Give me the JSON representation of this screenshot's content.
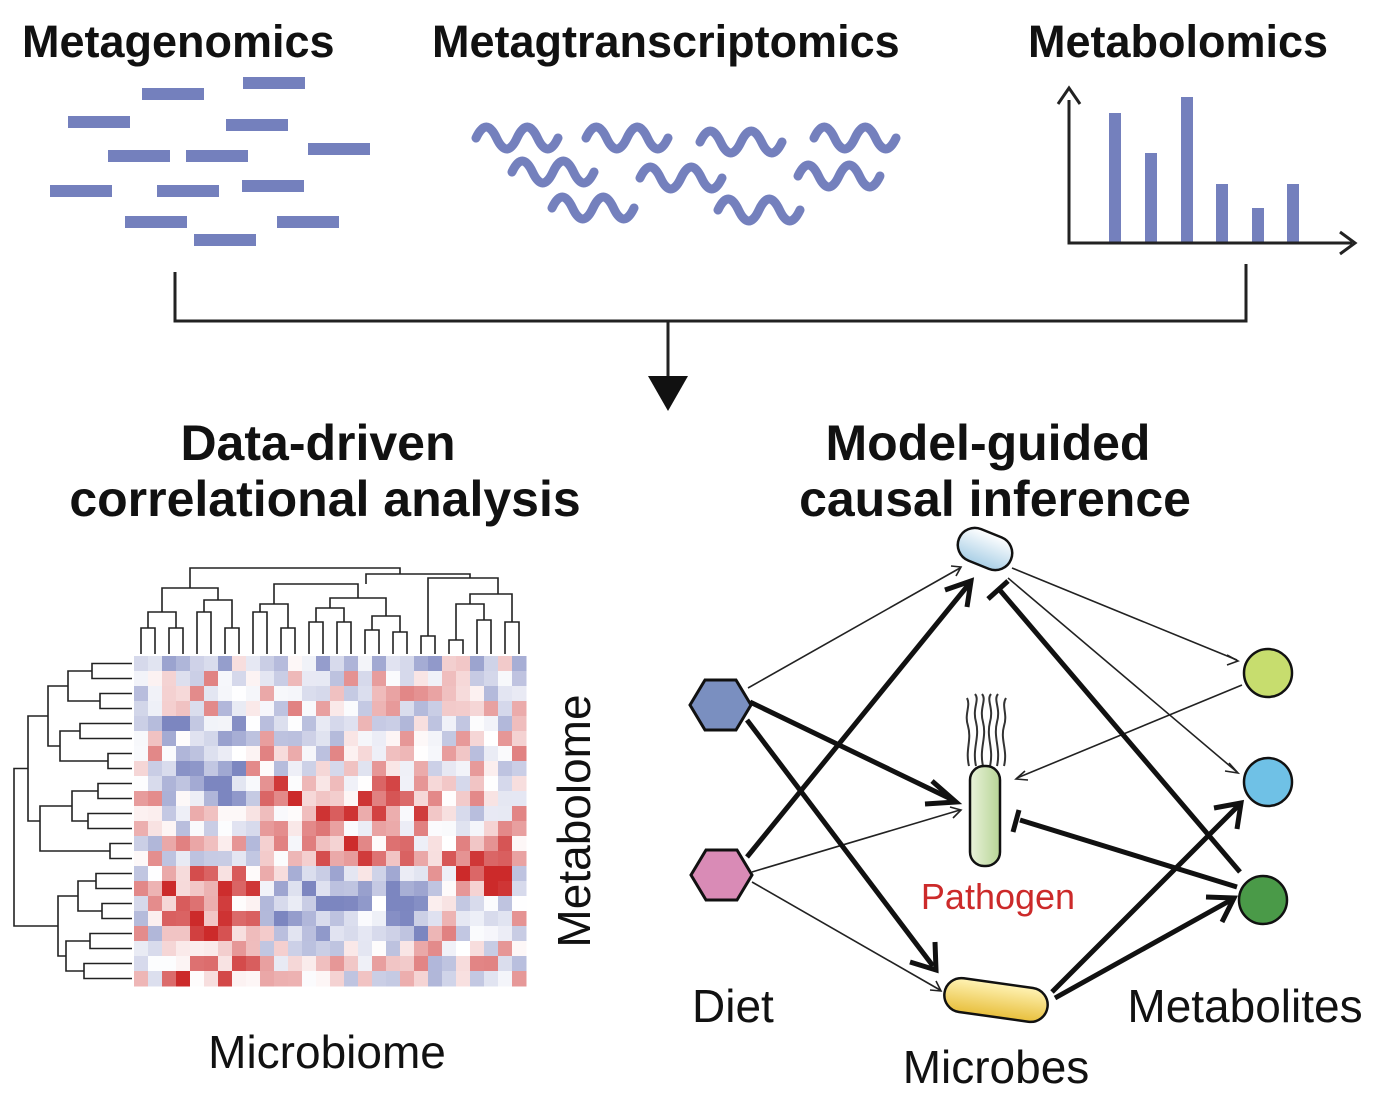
{
  "headers": {
    "metagenomics": "Metagenomics",
    "metatranscriptomics": "Metagtranscriptomics",
    "metabolomics": "Metabolomics"
  },
  "sections": {
    "left_title_line1": "Data-driven",
    "left_title_line2": "correlational analysis",
    "right_title_line1": "Model-guided",
    "right_title_line2": "causal inference"
  },
  "heatmap": {
    "xlabel": "Microbiome",
    "ylabel": "Metabolome"
  },
  "network": {
    "diet": "Diet",
    "microbes": "Microbes",
    "metabolites": "Metabolites",
    "pathogen": "Pathogen"
  },
  "colors": {
    "omics_blue": "#7480bd",
    "heat_red": "#cc2a2a",
    "heat_blue": "#7c86c0",
    "diet_blue": "#7a8fc0",
    "diet_pink": "#d98bb6",
    "metab_green_light": "#c7dd6e",
    "metab_cyan": "#6fc1e6",
    "metab_green_dark": "#4a9a48",
    "microbe_yellow": "#f2d060",
    "pathogen_green": "#cfe3b0",
    "pathogen_text": "#cc2a2a"
  }
}
